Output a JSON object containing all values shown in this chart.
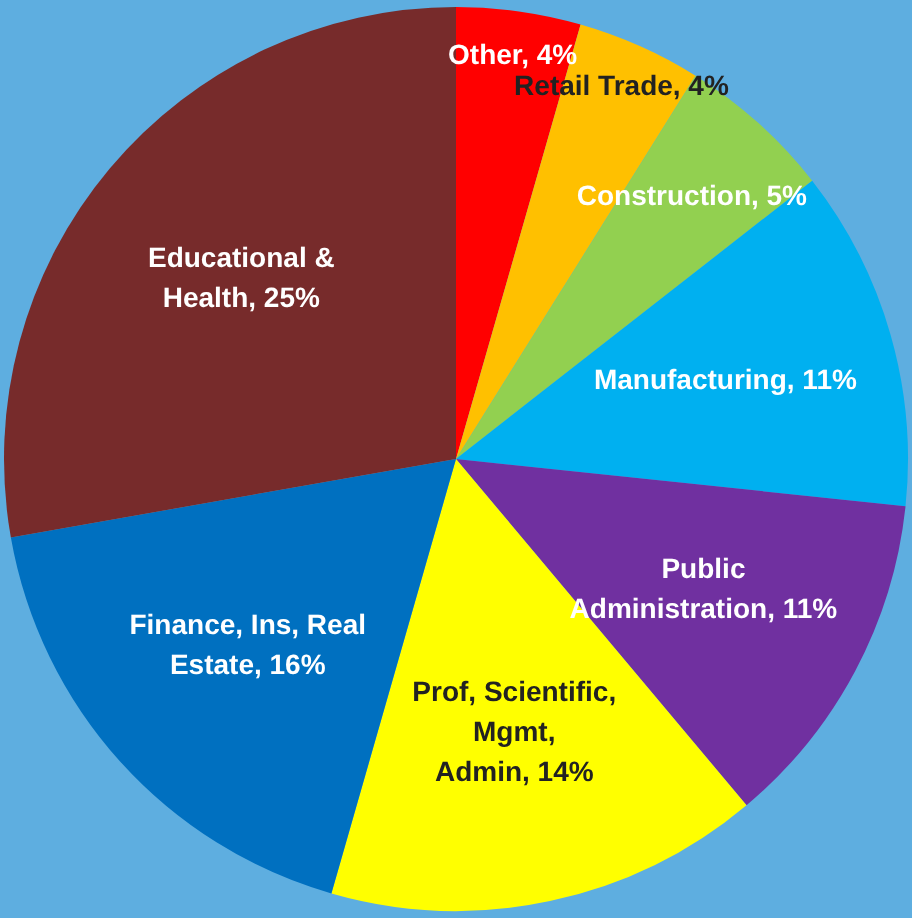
{
  "chart_data": {
    "type": "pie",
    "categories": [
      "Other",
      "Retail Trade",
      "Construction",
      "Manufacturing",
      "Public Administration",
      "Prof, Scientific, Mgmt, Admin",
      "Finance, Ins, Real Estate",
      "Educational & Health"
    ],
    "values": [
      4,
      4,
      5,
      11,
      11,
      14,
      16,
      25
    ],
    "value_labels": [
      "4%",
      "4%",
      "5%",
      "11%",
      "11%",
      "14%",
      "16%",
      "25%"
    ],
    "colors": [
      "#ff0000",
      "#ffc000",
      "#92d050",
      "#00b0f0",
      "#7030a0",
      "#ffff00",
      "#0070c0",
      "#772b2b"
    ],
    "legend": false
  }
}
